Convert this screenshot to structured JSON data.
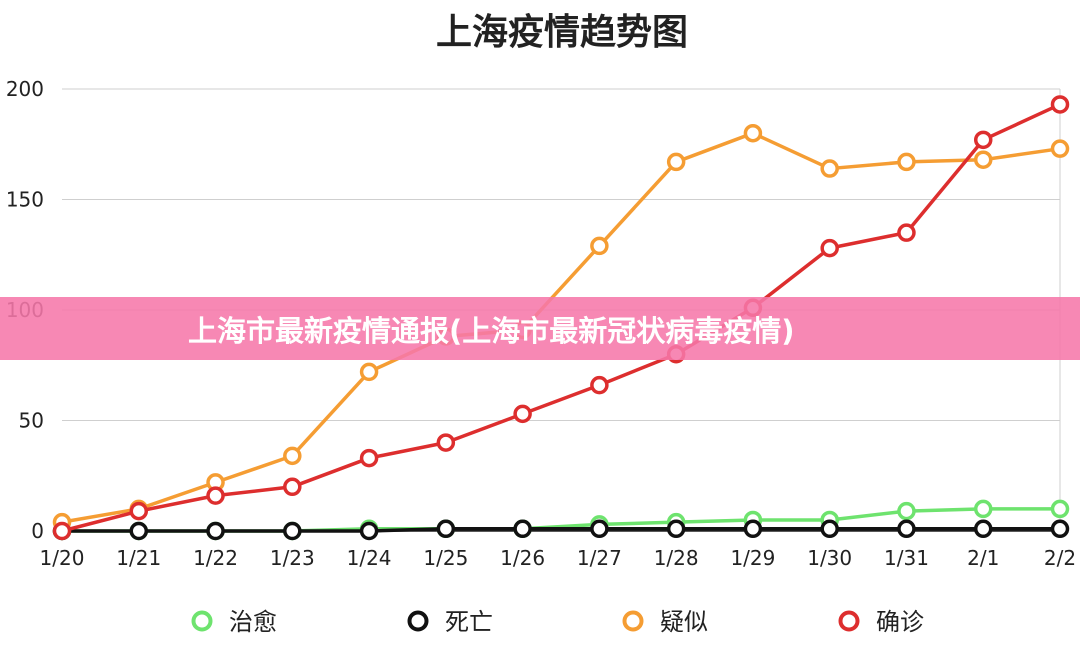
{
  "banner": {
    "text": "上海市最新疫情通报(上海市最新冠状病毒疫情)",
    "color": "#f678aa"
  },
  "chart_data": {
    "type": "line",
    "title": "上海疫情趋势图",
    "xlabel": "",
    "ylabel": "",
    "categories": [
      "1/20",
      "1/21",
      "1/22",
      "1/23",
      "1/24",
      "1/25",
      "1/26",
      "1/27",
      "1/28",
      "1/29",
      "1/30",
      "1/31",
      "2/1",
      "2/2"
    ],
    "ylim": [
      0,
      200
    ],
    "yticks": [
      0,
      50,
      100,
      150,
      200
    ],
    "grid": true,
    "legend_position": "bottom",
    "series": [
      {
        "name": "治愈",
        "color": "#6ee36e",
        "values": [
          0,
          0,
          0,
          0,
          1,
          1,
          1,
          3,
          4,
          5,
          5,
          9,
          10,
          10
        ]
      },
      {
        "name": "死亡",
        "color": "#111111",
        "values": [
          0,
          0,
          0,
          0,
          0,
          1,
          1,
          1,
          1,
          1,
          1,
          1,
          1,
          1
        ]
      },
      {
        "name": "疑似",
        "color": "#f59d33",
        "values": [
          4,
          10,
          22,
          34,
          72,
          88,
          91,
          129,
          167,
          180,
          164,
          167,
          168,
          173
        ]
      },
      {
        "name": "确诊",
        "color": "#dd2e2e",
        "values": [
          0,
          9,
          16,
          20,
          33,
          40,
          53,
          66,
          80,
          101,
          128,
          135,
          177,
          193
        ]
      }
    ]
  }
}
